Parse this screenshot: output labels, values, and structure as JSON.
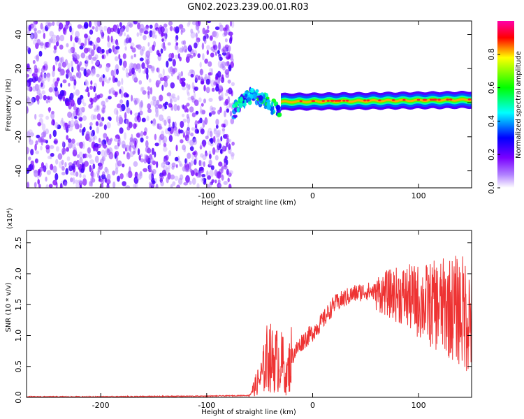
{
  "figure_title": "GN02.2023.239.00.01.R03",
  "chart_data": [
    {
      "type": "heatmap",
      "xlabel": "Height of straight line (km)",
      "ylabel": "Frequency (Hz)",
      "xlim": [
        -270,
        150
      ],
      "ylim": [
        -50,
        48
      ],
      "xticks": [
        -200,
        -100,
        0,
        100
      ],
      "yticks": [
        -40,
        -20,
        0,
        20,
        40
      ],
      "colorbar": {
        "label": "Normalized spectral amplitude",
        "range": [
          0,
          1
        ],
        "ticks": [
          "0.0",
          "0.2",
          "0.4",
          "0.6",
          "0.8"
        ],
        "colormap": [
          "#ffffff",
          "#7a00ff",
          "#0000ff",
          "#00ffff",
          "#00ff00",
          "#ffff00",
          "#ff0000",
          "#ff00aa"
        ]
      },
      "regions": [
        {
          "name": "noise",
          "x": [
            -270,
            -75
          ],
          "y": [
            -50,
            48
          ],
          "amplitude": [
            0.05,
            0.25
          ]
        },
        {
          "name": "transition",
          "x": [
            -75,
            -30
          ],
          "y_center": [
            -8,
            10
          ],
          "amplitude": [
            0.2,
            0.6
          ]
        },
        {
          "name": "signal_line",
          "x": [
            -30,
            150
          ],
          "y_center": [
            0,
            2
          ],
          "amplitude": [
            0.5,
            0.9
          ]
        }
      ]
    },
    {
      "type": "line",
      "xlabel": "Height of straight line (km)",
      "ylabel": "SNR (10 * v/v)",
      "yscale_label": "(x10⁴)",
      "xlim": [
        -270,
        150
      ],
      "ylim": [
        0,
        2.7
      ],
      "xticks": [
        -200,
        -100,
        0,
        100
      ],
      "yticks": [
        "0.0",
        "0.5",
        "1.0",
        "1.5",
        "2.0",
        "2.5"
      ],
      "color": "#ee3333",
      "x": [
        -270,
        -200,
        -100,
        -60,
        -48,
        -42,
        -38,
        -33,
        -28,
        -25,
        -20,
        -10,
        0,
        10,
        20,
        30,
        40,
        50,
        60,
        70,
        80,
        90,
        100,
        110,
        120,
        130,
        140,
        150
      ],
      "y": [
        0.01,
        0.01,
        0.02,
        0.03,
        0.35,
        0.7,
        0.6,
        0.6,
        0.55,
        0.3,
        0.65,
        0.9,
        1.05,
        1.25,
        1.5,
        1.6,
        1.68,
        1.72,
        1.7,
        1.68,
        1.66,
        1.62,
        1.55,
        1.5,
        1.48,
        1.45,
        1.4,
        1.3
      ]
    }
  ]
}
